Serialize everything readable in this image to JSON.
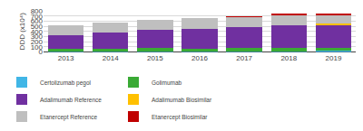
{
  "chart_data": {
    "type": "bar",
    "stacked": true,
    "categories": [
      "2013",
      "2014",
      "2015",
      "2016",
      "2017",
      "2018",
      "2019"
    ],
    "series": [
      {
        "name": "Certolizumab pegol",
        "color": "#41b6e6",
        "values": [
          10,
          12,
          12,
          14,
          15,
          18,
          25
        ]
      },
      {
        "name": "Golimumab",
        "color": "#3aaa35",
        "values": [
          45,
          50,
          60,
          55,
          60,
          65,
          55
        ]
      },
      {
        "name": "Adalimumab Reference",
        "color": "#7030a0",
        "values": [
          275,
          320,
          365,
          375,
          410,
          440,
          450
        ]
      },
      {
        "name": "Adalimumab Biosimilar",
        "color": "#ffc000",
        "values": [
          0,
          0,
          0,
          0,
          0,
          0,
          18
        ]
      },
      {
        "name": "Etanercept Reference",
        "color": "#bfbfbf",
        "values": [
          190,
          198,
          188,
          208,
          195,
          195,
          175
        ]
      },
      {
        "name": "Etanercept Biosimilar",
        "color": "#c00000",
        "values": [
          0,
          0,
          0,
          0,
          10,
          15,
          28
        ]
      }
    ],
    "ylabel": "DDD (x10⁴)",
    "ylim": [
      0,
      800
    ],
    "yticks": [
      0,
      100,
      200,
      300,
      400,
      500,
      600,
      700,
      800
    ],
    "grid": true,
    "legend": "bottom"
  }
}
